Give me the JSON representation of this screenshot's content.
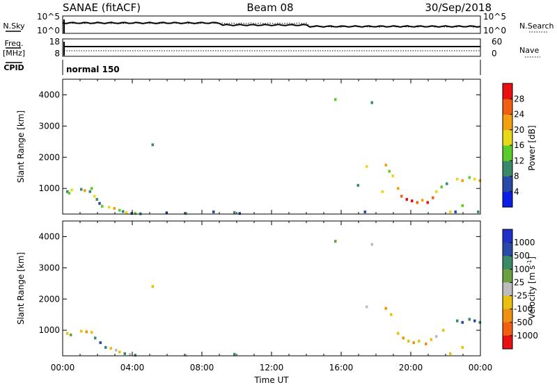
{
  "header": {
    "title": "SANAE (fitACF)",
    "beam": "Beam 08",
    "date": "30/Sep/2018"
  },
  "noise_panel": {
    "left_label": "N.Sky",
    "right_label": "N.Search",
    "left_ticks": [
      "10^5",
      "10^0"
    ],
    "right_ticks": [
      "10^5",
      "10^0"
    ]
  },
  "freq_panel": {
    "left_label_1": "Freq.",
    "left_label_2": "[MHz]",
    "right_label": "Nave",
    "left_ticks": [
      "18",
      "8"
    ],
    "right_ticks": [
      "60",
      "0"
    ]
  },
  "cpid_panel": {
    "label": "CPID",
    "mode": "normal 150"
  },
  "colors": {
    "power_scale": [
      "#0a1ee6",
      "#2a4aa8",
      "#3a8a6a",
      "#5ccc2a",
      "#e8d81a",
      "#f0a010",
      "#f06010",
      "#e81010"
    ],
    "velocity_scale": [
      "#2030c8",
      "#2a4aa8",
      "#3a8a6a",
      "#6aa040",
      "#bcbcbc",
      "#e8c010",
      "#f09010",
      "#f06010",
      "#e81010"
    ]
  },
  "chart_data": [
    {
      "type": "heatmap",
      "name": "power",
      "ylabel": "Slant Range [km]",
      "ylim": [
        180,
        4500
      ],
      "yticks": [
        "1000",
        "2000",
        "3000",
        "4000"
      ],
      "colorbar": {
        "label": "Power [dB]",
        "ticks": [
          "4",
          "8",
          "12",
          "16",
          "20",
          "24",
          "28"
        ],
        "range": [
          0,
          32
        ]
      },
      "cells": [
        [
          0.2,
          900,
          8
        ],
        [
          0.3,
          850,
          12
        ],
        [
          0.45,
          950,
          16
        ],
        [
          1.0,
          970,
          10
        ],
        [
          1.2,
          930,
          20
        ],
        [
          1.5,
          900,
          8
        ],
        [
          1.6,
          1000,
          12
        ],
        [
          1.75,
          750,
          16
        ],
        [
          1.9,
          650,
          8
        ],
        [
          2.05,
          520,
          4
        ],
        [
          2.2,
          430,
          12
        ],
        [
          2.6,
          400,
          16
        ],
        [
          2.9,
          360,
          20
        ],
        [
          3.2,
          300,
          12
        ],
        [
          3.4,
          260,
          8
        ],
        [
          3.6,
          230,
          16
        ],
        [
          3.9,
          200,
          4
        ],
        [
          4.1,
          200,
          12
        ],
        [
          4.4,
          190,
          8
        ],
        [
          5.1,
          2400,
          8
        ],
        [
          5.9,
          220,
          4
        ],
        [
          7.0,
          200,
          8
        ],
        [
          8.6,
          250,
          4
        ],
        [
          9.8,
          230,
          8
        ],
        [
          10.1,
          200,
          4
        ],
        [
          15.6,
          3850,
          12
        ],
        [
          17.7,
          3750,
          8
        ],
        [
          16.9,
          1100,
          8
        ],
        [
          17.4,
          1700,
          16
        ],
        [
          17.3,
          250,
          4
        ],
        [
          18.3,
          900,
          16
        ],
        [
          18.5,
          1750,
          20
        ],
        [
          18.7,
          1550,
          12
        ],
        [
          18.9,
          1400,
          16
        ],
        [
          19.2,
          1000,
          20
        ],
        [
          19.4,
          750,
          24
        ],
        [
          19.7,
          650,
          28
        ],
        [
          20.0,
          600,
          28
        ],
        [
          20.3,
          550,
          24
        ],
        [
          20.6,
          620,
          20
        ],
        [
          20.9,
          550,
          28
        ],
        [
          21.2,
          700,
          24
        ],
        [
          21.4,
          900,
          16
        ],
        [
          21.7,
          1050,
          12
        ],
        [
          22.0,
          1150,
          8
        ],
        [
          22.2,
          250,
          16
        ],
        [
          22.5,
          250,
          4
        ],
        [
          22.6,
          1300,
          16
        ],
        [
          22.9,
          1250,
          20
        ],
        [
          23.3,
          1350,
          12
        ],
        [
          23.6,
          1300,
          16
        ],
        [
          23.9,
          1250,
          20
        ],
        [
          22.9,
          450,
          12
        ],
        [
          23.8,
          250,
          8
        ]
      ]
    },
    {
      "type": "heatmap",
      "name": "velocity",
      "ylabel": "Slant Range [km]",
      "xlabel": "Time UT",
      "ylim": [
        180,
        4500
      ],
      "yticks": [
        "1000",
        "2000",
        "3000",
        "4000"
      ],
      "xticks": [
        "00:00",
        "04:00",
        "08:00",
        "12:00",
        "16:00",
        "20:00",
        "00:00"
      ],
      "xlim": [
        0,
        24
      ],
      "colorbar": {
        "label": "Velocity [m s^-1]",
        "ticks": [
          "1000",
          "500",
          "100",
          "25",
          "-25",
          "-100",
          "-500",
          "-1000"
        ]
      },
      "cells": [
        [
          0.2,
          900,
          -100
        ],
        [
          0.4,
          850,
          25
        ],
        [
          1.0,
          970,
          -100
        ],
        [
          1.3,
          950,
          -500
        ],
        [
          1.6,
          930,
          -100
        ],
        [
          1.8,
          750,
          100
        ],
        [
          2.1,
          600,
          500
        ],
        [
          2.4,
          450,
          100
        ],
        [
          2.7,
          420,
          -100
        ],
        [
          3.0,
          360,
          -25
        ],
        [
          3.2,
          300,
          -100
        ],
        [
          3.5,
          250,
          100
        ],
        [
          3.8,
          220,
          -25
        ],
        [
          4.1,
          200,
          100
        ],
        [
          5.1,
          2400,
          -100
        ],
        [
          7.0,
          200,
          -25
        ],
        [
          9.8,
          230,
          100
        ],
        [
          15.6,
          3850,
          25
        ],
        [
          17.7,
          3750,
          -25
        ],
        [
          17.4,
          1750,
          -25
        ],
        [
          18.5,
          1700,
          -500
        ],
        [
          18.8,
          1500,
          -100
        ],
        [
          19.2,
          900,
          -100
        ],
        [
          19.5,
          750,
          -500
        ],
        [
          19.8,
          650,
          -100
        ],
        [
          20.1,
          600,
          -500
        ],
        [
          20.4,
          650,
          -100
        ],
        [
          20.8,
          560,
          -500
        ],
        [
          21.1,
          700,
          -100
        ],
        [
          21.4,
          800,
          -25
        ],
        [
          21.8,
          1000,
          -100
        ],
        [
          22.2,
          250,
          -100
        ],
        [
          22.6,
          1300,
          100
        ],
        [
          22.9,
          1250,
          500
        ],
        [
          23.3,
          1350,
          100
        ],
        [
          23.6,
          1300,
          500
        ],
        [
          23.9,
          1250,
          100
        ],
        [
          22.9,
          450,
          -100
        ]
      ]
    }
  ]
}
